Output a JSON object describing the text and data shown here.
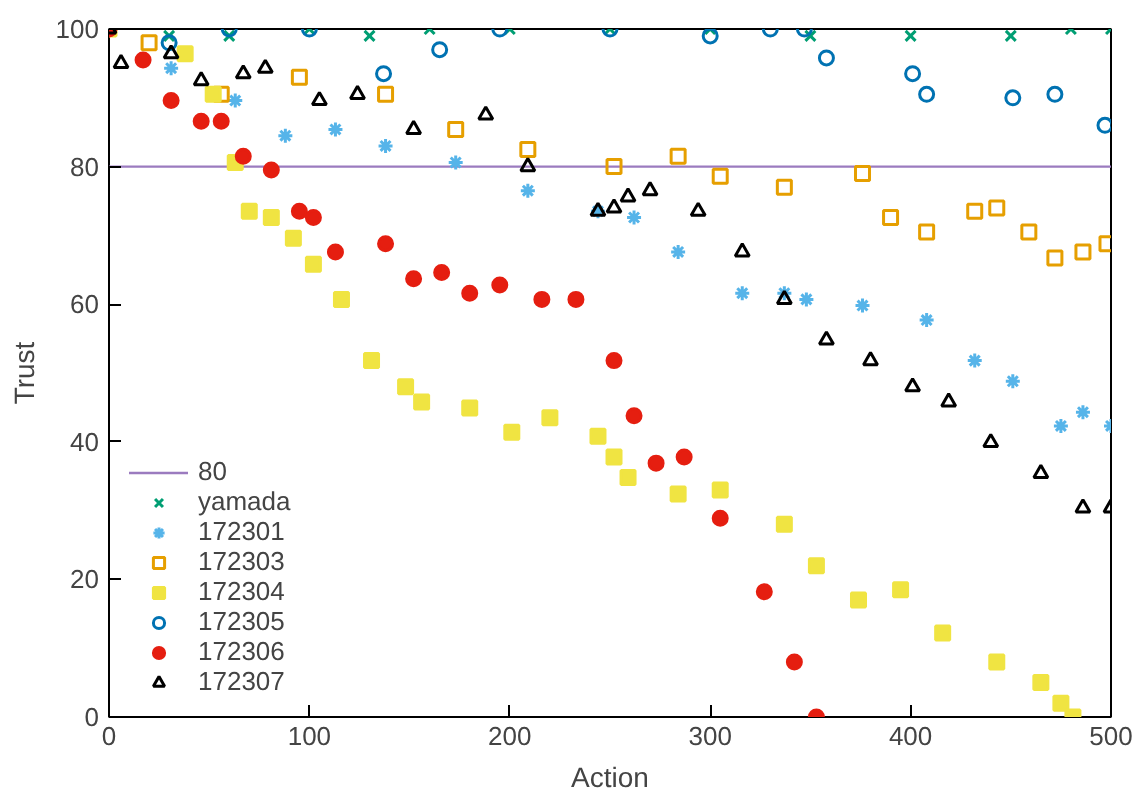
{
  "chart_data": {
    "type": "scatter",
    "xlabel": "Action",
    "ylabel": "Trust",
    "xlim": [
      0,
      500
    ],
    "ylim": [
      0,
      100
    ],
    "xticks": [
      0,
      100,
      200,
      300,
      400,
      500
    ],
    "yticks": [
      0,
      20,
      40,
      60,
      80,
      100
    ],
    "grid": false,
    "legend": "bottom left",
    "ref_lines": [
      {
        "axis": "y",
        "value": 80,
        "label": "80",
        "color": "#9b7bbf"
      }
    ],
    "series": [
      {
        "name": "yamada",
        "color": "#009e73",
        "marker": "x",
        "x": [
          30,
          60,
          100,
          130,
          160,
          200,
          250,
          300,
          350,
          400,
          450,
          480,
          500
        ],
        "values": [
          99,
          99,
          100,
          99,
          100,
          100,
          100,
          100,
          99,
          99,
          99,
          100,
          100
        ]
      },
      {
        "name": "172301",
        "color": "#56b4e9",
        "marker": "cross",
        "x": [
          31,
          63,
          88,
          113,
          138,
          173,
          209,
          244,
          262,
          284,
          316,
          337,
          348,
          376,
          408,
          432,
          451,
          475,
          486,
          500
        ],
        "values": [
          94.3,
          89.6,
          84.5,
          85.4,
          83,
          80.6,
          76.5,
          73.5,
          72.6,
          67.6,
          61.6,
          61.6,
          60.7,
          59.8,
          57.7,
          51.8,
          48.8,
          42.3,
          44.3,
          42.3
        ]
      },
      {
        "name": "172303",
        "color": "#e69f00",
        "marker": "square",
        "x": [
          20,
          56,
          95,
          138,
          173,
          209,
          252,
          284,
          305,
          337,
          376,
          390,
          408,
          432,
          443,
          459,
          472,
          486,
          498
        ],
        "values": [
          98,
          90.5,
          93,
          90.5,
          85.4,
          82.5,
          80,
          81.5,
          78.6,
          77,
          79,
          72.6,
          70.5,
          73.5,
          74,
          70.5,
          66.7,
          67.6,
          68.8
        ]
      },
      {
        "name": "172304",
        "color": "#f0e442",
        "marker": "square_filled",
        "x": [
          0,
          38,
          52,
          63,
          70,
          81,
          92,
          102,
          116,
          131,
          148,
          156,
          180,
          201,
          220,
          244,
          252,
          259,
          284,
          305,
          337,
          353,
          374,
          395,
          416,
          443,
          465,
          475,
          481
        ],
        "values": [
          100,
          96.4,
          90.5,
          80.6,
          73.5,
          72.6,
          69.6,
          65.8,
          60.7,
          51.8,
          48,
          45.8,
          44.9,
          41.4,
          43.5,
          40.8,
          37.8,
          34.8,
          32.4,
          33,
          28,
          22,
          17,
          18.5,
          12.2,
          8,
          5,
          2,
          0
        ]
      },
      {
        "name": "172305",
        "color": "#0072b2",
        "marker": "circle",
        "x": [
          30,
          60,
          100,
          137,
          165,
          195,
          250,
          300,
          330,
          347,
          358,
          401,
          408,
          451,
          472,
          497
        ],
        "values": [
          98,
          100,
          100,
          93.5,
          97,
          100,
          100,
          99,
          100,
          100,
          95.8,
          93.5,
          90.5,
          90,
          90.5,
          86
        ]
      },
      {
        "name": "172306",
        "color": "#e51e10",
        "marker": "circle_filled",
        "x": [
          0,
          17,
          31,
          46,
          56,
          67,
          81,
          95,
          102,
          113,
          138,
          152,
          166,
          180,
          195,
          216,
          233,
          252,
          262,
          273,
          287,
          305,
          327,
          342,
          353
        ],
        "values": [
          100,
          95.5,
          89.6,
          86.6,
          86.6,
          81.5,
          79.5,
          73.5,
          72.6,
          67.6,
          68.8,
          63.7,
          64.6,
          61.6,
          62.8,
          60.7,
          60.7,
          51.8,
          43.8,
          36.9,
          37.8,
          28.9,
          18.2,
          8,
          0
        ]
      },
      {
        "name": "172307",
        "color": "#000000",
        "marker": "triangle",
        "x": [
          0,
          6,
          31,
          46,
          67,
          78,
          105,
          124,
          152,
          188,
          209,
          244,
          252,
          259,
          270,
          294,
          316,
          337,
          358,
          380,
          401,
          419,
          440,
          465,
          486,
          500
        ],
        "values": [
          100,
          95,
          96.4,
          92.5,
          93.5,
          94.3,
          89.6,
          90.5,
          85.4,
          87.5,
          80,
          73.5,
          74,
          75.6,
          76.5,
          73.5,
          67.6,
          60.7,
          54.8,
          51.8,
          48,
          45.8,
          39.9,
          35.4,
          30.4,
          30.4
        ]
      }
    ]
  }
}
